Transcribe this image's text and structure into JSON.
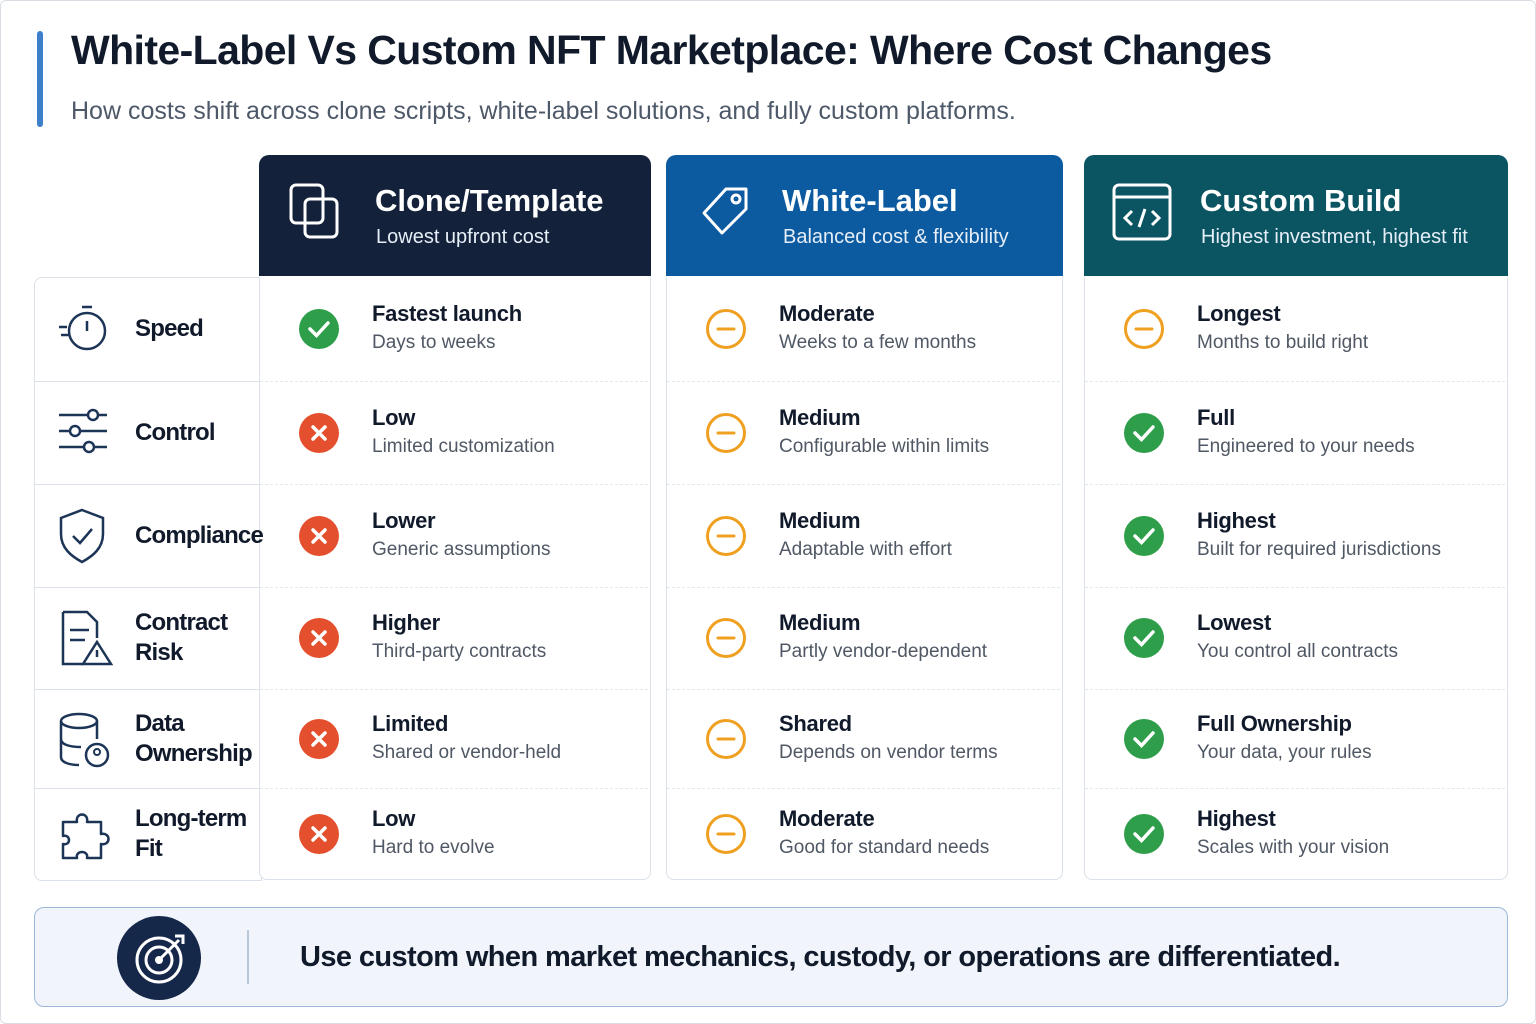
{
  "header": {
    "title": "White-Label Vs Custom NFT Marketplace: Where Cost Changes",
    "subtitle": "How costs shift across clone scripts, white-label solutions, and fully custom platforms."
  },
  "columns": [
    {
      "title": "Clone/Template",
      "subtitle": "Lowest upfront cost"
    },
    {
      "title": "White-Label",
      "subtitle": "Balanced cost & flexibility"
    },
    {
      "title": "Custom Build",
      "subtitle": "Highest investment, highest fit"
    }
  ],
  "rows": [
    {
      "label": "Speed",
      "cells": [
        {
          "title": "Fastest launch",
          "detail": "Days to weeks"
        },
        {
          "title": "Moderate",
          "detail": "Weeks to a few months"
        },
        {
          "title": "Longest",
          "detail": "Months to build right"
        }
      ]
    },
    {
      "label": "Control",
      "cells": [
        {
          "title": "Low",
          "detail": "Limited customization"
        },
        {
          "title": "Medium",
          "detail": "Configurable within limits"
        },
        {
          "title": "Full",
          "detail": "Engineered to your needs"
        }
      ]
    },
    {
      "label": "Compliance",
      "cells": [
        {
          "title": "Lower",
          "detail": "Generic assumptions"
        },
        {
          "title": "Medium",
          "detail": "Adaptable with effort"
        },
        {
          "title": "Highest",
          "detail": "Built for required jurisdictions"
        }
      ]
    },
    {
      "label": "Contract Risk",
      "cells": [
        {
          "title": "Higher",
          "detail": "Third-party contracts"
        },
        {
          "title": "Medium",
          "detail": "Partly vendor-dependent"
        },
        {
          "title": "Lowest",
          "detail": "You control all contracts"
        }
      ]
    },
    {
      "label": "Data Ownership",
      "cells": [
        {
          "title": "Limited",
          "detail": "Shared or vendor-held"
        },
        {
          "title": "Shared",
          "detail": "Depends on vendor terms"
        },
        {
          "title": "Full Ownership",
          "detail": "Your data, your rules"
        }
      ]
    },
    {
      "label": "Long-term Fit",
      "cells": [
        {
          "title": "Low",
          "detail": "Hard to evolve"
        },
        {
          "title": "Moderate",
          "detail": "Good for standard needs"
        },
        {
          "title": "Highest",
          "detail": "Scales with your vision"
        }
      ]
    }
  ],
  "footer": {
    "text": "Use custom when market mechanics, custody, or operations are differentiated."
  }
}
